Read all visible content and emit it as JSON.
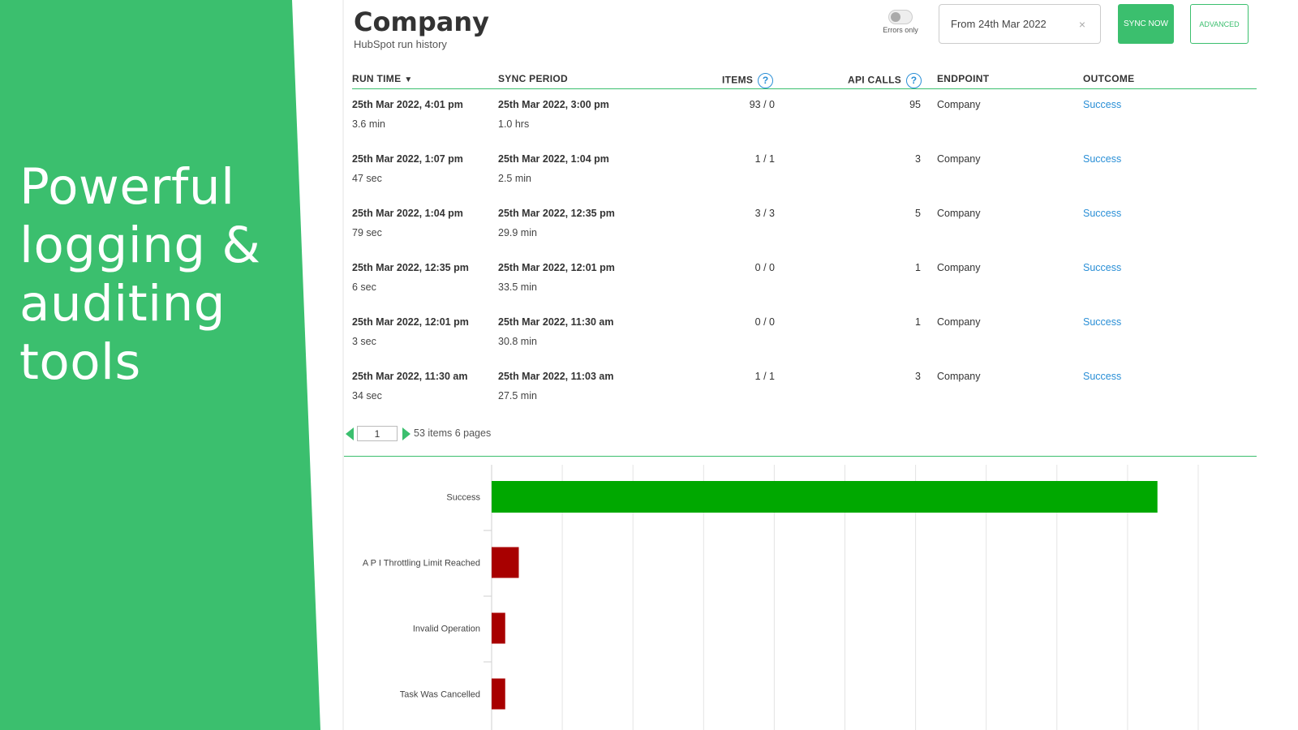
{
  "hero": {
    "lines": [
      "Powerful",
      "logging &",
      "auditing",
      "tools"
    ]
  },
  "header": {
    "title": "Company",
    "subtitle": "HubSpot run history"
  },
  "filters": {
    "errors_only_label": "Errors only",
    "errors_only_on": false,
    "date_value": "From 24th Mar 2022",
    "clear_icon": "×"
  },
  "actions": {
    "sync_label": "SYNC NOW",
    "advanced_label": "ADVANCED"
  },
  "table": {
    "columns": {
      "run_time": "RUN TIME",
      "sync_period": "SYNC PERIOD",
      "items": "ITEMS",
      "api_calls": "API CALLS",
      "endpoint": "ENDPOINT",
      "outcome": "OUTCOME"
    },
    "sort_icon": "▼",
    "help_icon": "?",
    "rows": [
      {
        "run_time": "25th Mar 2022, 4:01 pm",
        "duration": "3.6 min",
        "sync_period": "25th Mar 2022, 3:00 pm",
        "period_len": "1.0 hrs",
        "items": "93 / 0",
        "api_calls": "95",
        "endpoint": "Company",
        "outcome": "Success"
      },
      {
        "run_time": "25th Mar 2022, 1:07 pm",
        "duration": "47 sec",
        "sync_period": "25th Mar 2022, 1:04 pm",
        "period_len": "2.5 min",
        "items": "1 / 1",
        "api_calls": "3",
        "endpoint": "Company",
        "outcome": "Success"
      },
      {
        "run_time": "25th Mar 2022, 1:04 pm",
        "duration": "79 sec",
        "sync_period": "25th Mar 2022, 12:35 pm",
        "period_len": "29.9 min",
        "items": "3 / 3",
        "api_calls": "5",
        "endpoint": "Company",
        "outcome": "Success"
      },
      {
        "run_time": "25th Mar 2022, 12:35 pm",
        "duration": "6 sec",
        "sync_period": "25th Mar 2022, 12:01 pm",
        "period_len": "33.5 min",
        "items": "0 / 0",
        "api_calls": "1",
        "endpoint": "Company",
        "outcome": "Success"
      },
      {
        "run_time": "25th Mar 2022, 12:01 pm",
        "duration": "3 sec",
        "sync_period": "25th Mar 2022, 11:30 am",
        "period_len": "30.8 min",
        "items": "0 / 0",
        "api_calls": "1",
        "endpoint": "Company",
        "outcome": "Success"
      },
      {
        "run_time": "25th Mar 2022, 11:30 am",
        "duration": "34 sec",
        "sync_period": "25th Mar 2022, 11:03 am",
        "period_len": "27.5 min",
        "items": "1 / 1",
        "api_calls": "3",
        "endpoint": "Company",
        "outcome": "Success"
      }
    ]
  },
  "pager": {
    "page": "1",
    "info": "53 items 6 pages"
  },
  "colors": {
    "brand": "#3bbf6e",
    "link": "#2a8fd6",
    "success_bar": "#00a800",
    "error_bar": "#a80000"
  },
  "chart_data": {
    "type": "bar",
    "orientation": "horizontal",
    "categories": [
      "Success",
      "A P I Throttling Limit Reached",
      "Invalid Operation",
      "Task Was Cancelled"
    ],
    "values": [
      49,
      2,
      1,
      1
    ],
    "xlim": [
      0,
      56
    ],
    "grid": true,
    "bar_colors": [
      "#00a800",
      "#a80000",
      "#a80000",
      "#a80000"
    ]
  }
}
